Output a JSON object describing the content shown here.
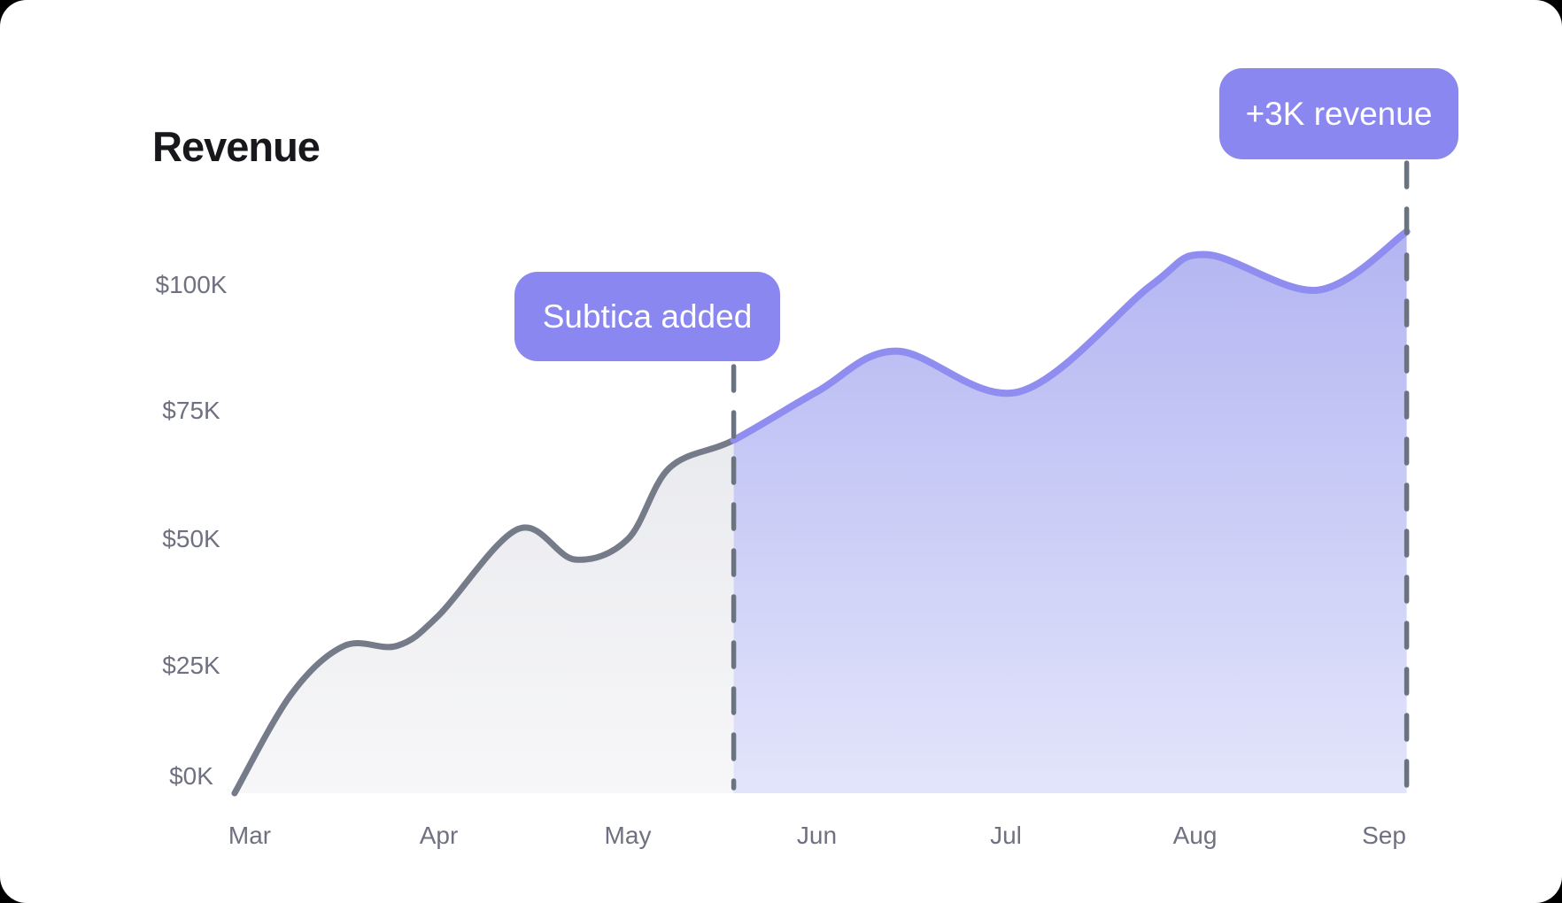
{
  "header": {
    "title": "Revenue"
  },
  "colors": {
    "background": "#000000",
    "card": "#ffffff",
    "title_text": "#17171c",
    "axis_label_text": "#6f7181",
    "badge_background": "#8a87f0",
    "badge_text": "#ffffff",
    "line_before": "#757b88",
    "area_before_top": "#e7e8ec",
    "area_before_bottom": "#f7f7f9",
    "line_after": "#8f8def",
    "area_after_top": "#b3b5f2",
    "area_after_bottom": "#e3e5fb",
    "dashed_line": "#6b7280"
  },
  "chart_data": {
    "type": "area",
    "title": "Revenue",
    "x_categories": [
      "Mar",
      "Apr",
      "May",
      "Jun",
      "Jul",
      "Aug",
      "Sep"
    ],
    "y_tick_labels": [
      "$100K",
      "$75K",
      "$50K",
      "$25K",
      "$0K"
    ],
    "y_tick_values_k": [
      100,
      75,
      50,
      25,
      0
    ],
    "ylim_k": [
      0,
      115
    ],
    "unit": "USD thousands",
    "grid": "off",
    "legend": "none",
    "series": [
      {
        "name": "Revenue",
        "values_k_by_month": [
          0,
          35,
          50,
          79,
          79,
          105,
          108
        ],
        "segments": [
          {
            "name": "before-subtica",
            "style": "gray",
            "from_month": "Mar",
            "to_month": "mid-May"
          },
          {
            "name": "after-subtica",
            "style": "purple",
            "from_month": "mid-May",
            "to_month": "Sep"
          }
        ]
      }
    ],
    "split_month": 2.56,
    "waypoints": [
      [
        -0.08,
        0
      ],
      [
        0.22,
        19.5
      ],
      [
        0.5,
        29
      ],
      [
        0.78,
        29
      ],
      [
        1.0,
        35
      ],
      [
        1.42,
        52
      ],
      [
        1.72,
        46
      ],
      [
        2.0,
        50
      ],
      [
        2.22,
        64
      ],
      [
        2.56,
        69.5
      ],
      [
        3.0,
        79
      ],
      [
        3.42,
        87
      ],
      [
        4.07,
        79
      ],
      [
        4.77,
        100
      ],
      [
        5.06,
        106
      ],
      [
        5.65,
        99
      ],
      [
        6.12,
        110.5
      ]
    ],
    "annotations": [
      {
        "label": "Subtica added",
        "x_month": 2.56,
        "value_k": 69.5
      },
      {
        "label": "+3K revenue",
        "x_month": 6.12,
        "value_k": 110.5
      }
    ]
  }
}
